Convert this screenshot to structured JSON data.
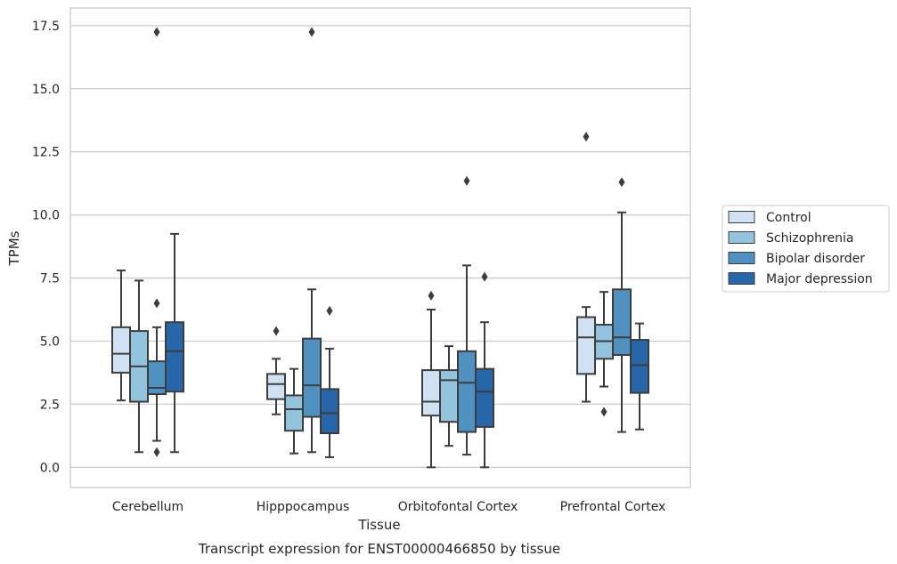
{
  "chart_data": {
    "type": "box",
    "title": "Transcript expression for ENST00000466850 by tissue",
    "xlabel": "Tissue",
    "ylabel": "TPMs",
    "ylim": [
      -0.8,
      18.2
    ],
    "yticks": [
      "0.0",
      "2.5",
      "5.0",
      "7.5",
      "10.0",
      "12.5",
      "15.0",
      "17.5"
    ],
    "ytick_values": [
      0,
      2.5,
      5,
      7.5,
      10,
      12.5,
      15,
      17.5
    ],
    "grid": "horizontal",
    "legend_position": "right",
    "categories": [
      "Cerebellum",
      "Hipppocampus",
      "Orbitofontal Cortex",
      "Prefrontal Cortex"
    ],
    "series": [
      {
        "name": "Control",
        "color": "#cfe1f2",
        "boxes": [
          {
            "whislo": 2.65,
            "q1": 3.75,
            "med": 4.5,
            "q3": 5.55,
            "whishi": 7.8,
            "fliers": []
          },
          {
            "whislo": 2.1,
            "q1": 2.7,
            "med": 3.3,
            "q3": 3.7,
            "whishi": 4.3,
            "fliers": [
              5.4
            ]
          },
          {
            "whislo": 0.0,
            "q1": 2.05,
            "med": 2.6,
            "q3": 3.85,
            "whishi": 6.25,
            "fliers": [
              6.8
            ]
          },
          {
            "whislo": 2.6,
            "q1": 3.7,
            "med": 5.15,
            "q3": 5.95,
            "whishi": 6.35,
            "fliers": [
              13.1
            ]
          }
        ]
      },
      {
        "name": "Schizophrenia",
        "color": "#93c4de",
        "boxes": [
          {
            "whislo": 0.6,
            "q1": 2.6,
            "med": 4.0,
            "q3": 5.4,
            "whishi": 7.4,
            "fliers": []
          },
          {
            "whislo": 0.55,
            "q1": 1.45,
            "med": 2.3,
            "q3": 2.85,
            "whishi": 3.9,
            "fliers": []
          },
          {
            "whislo": 0.85,
            "q1": 1.8,
            "med": 3.45,
            "q3": 3.85,
            "whishi": 4.8,
            "fliers": []
          },
          {
            "whislo": 3.2,
            "q1": 4.3,
            "med": 5.0,
            "q3": 5.65,
            "whishi": 6.95,
            "fliers": [
              2.2
            ]
          }
        ]
      },
      {
        "name": "Bipolar disorder",
        "color": "#4f92c2",
        "boxes": [
          {
            "whislo": 1.05,
            "q1": 2.9,
            "med": 3.15,
            "q3": 4.2,
            "whishi": 5.55,
            "fliers": [
              17.25,
              6.5,
              0.6
            ]
          },
          {
            "whislo": 0.6,
            "q1": 2.0,
            "med": 3.25,
            "q3": 5.1,
            "whishi": 7.05,
            "fliers": [
              17.25
            ]
          },
          {
            "whislo": 0.5,
            "q1": 1.4,
            "med": 3.35,
            "q3": 4.6,
            "whishi": 8.0,
            "fliers": [
              11.35
            ]
          },
          {
            "whislo": 1.4,
            "q1": 4.45,
            "med": 5.15,
            "q3": 7.05,
            "whishi": 10.1,
            "fliers": [
              11.3
            ]
          }
        ]
      },
      {
        "name": "Major depression",
        "color": "#2766a8",
        "boxes": [
          {
            "whislo": 0.6,
            "q1": 3.0,
            "med": 4.6,
            "q3": 5.75,
            "whishi": 9.25,
            "fliers": []
          },
          {
            "whislo": 0.4,
            "q1": 1.35,
            "med": 2.15,
            "q3": 3.1,
            "whishi": 4.7,
            "fliers": [
              6.2
            ]
          },
          {
            "whislo": 0.0,
            "q1": 1.6,
            "med": 3.0,
            "q3": 3.9,
            "whishi": 5.75,
            "fliers": [
              7.55
            ]
          },
          {
            "whislo": 1.5,
            "q1": 2.95,
            "med": 4.05,
            "q3": 5.05,
            "whishi": 5.7,
            "fliers": []
          }
        ]
      }
    ]
  }
}
